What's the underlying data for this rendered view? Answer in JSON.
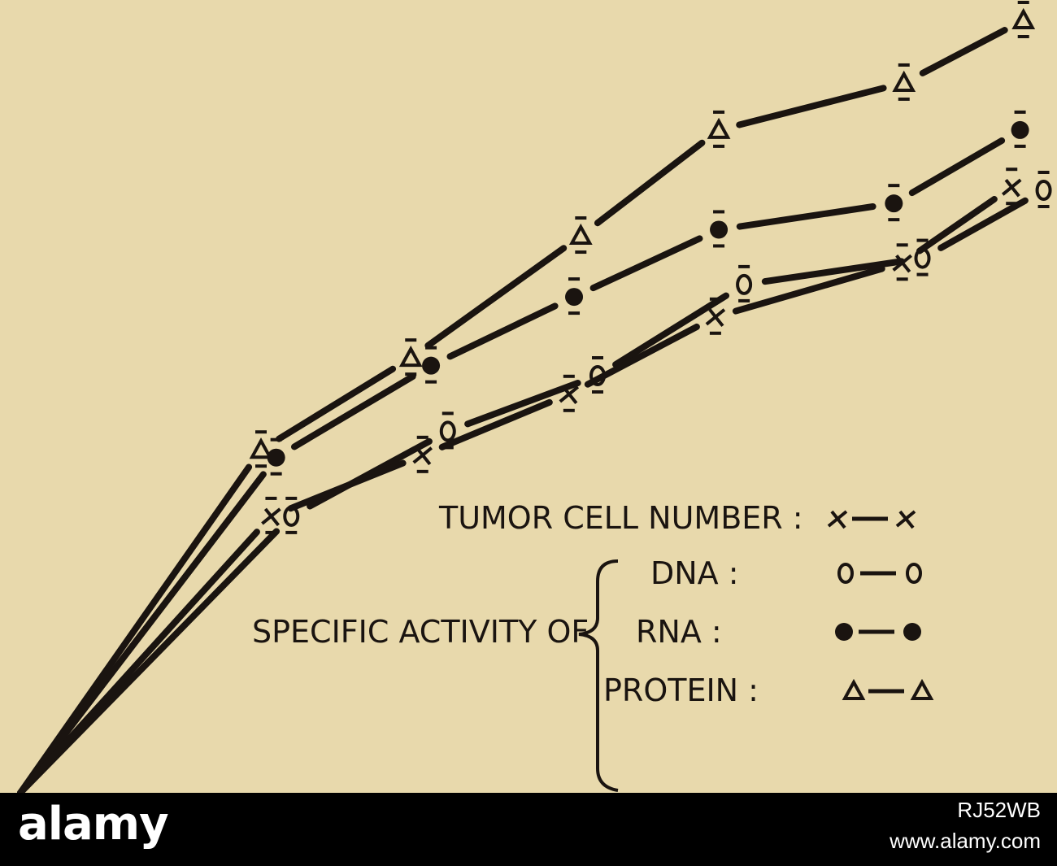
{
  "chart_data": {
    "type": "line",
    "title": "",
    "xlabel": "",
    "ylabel": "",
    "xlim": [
      0,
      6.3
    ],
    "ylim": [
      0,
      105
    ],
    "grid": false,
    "axes_visible": false,
    "legend_placement": "bottom-right",
    "legend": {
      "tumor_label": "TUMOR CELL NUMBER :",
      "group_label": "SPECIFIC ACTIVITY OF",
      "dna_label": "DNA :",
      "rna_label": "RNA :",
      "protein_label": "PROTEIN :"
    },
    "series": [
      {
        "name": "PROTEIN",
        "marker": "open-triangle",
        "x": [
          0,
          1.43,
          2.32,
          3.33,
          4.15,
          5.25,
          5.96
        ],
        "y": [
          0,
          44.4,
          56.3,
          72.1,
          85.8,
          91.9,
          100.0
        ]
      },
      {
        "name": "RNA",
        "marker": "filled-circle",
        "x": [
          0,
          1.52,
          2.44,
          3.29,
          4.15,
          5.19,
          5.94
        ],
        "y": [
          0,
          43.4,
          55.3,
          64.2,
          72.9,
          76.3,
          85.8
        ]
      },
      {
        "name": "DNA",
        "marker": "open-circle",
        "x": [
          0,
          1.61,
          2.54,
          3.43,
          4.3,
          5.36,
          6.08
        ],
        "y": [
          0,
          35.8,
          46.8,
          54.0,
          65.8,
          69.2,
          78.0
        ]
      },
      {
        "name": "TUMOR CELL NUMBER",
        "marker": "x",
        "x": [
          0,
          1.49,
          2.39,
          3.26,
          4.13,
          5.24,
          5.89
        ],
        "y": [
          0,
          35.8,
          43.7,
          51.6,
          61.6,
          68.6,
          78.4
        ]
      }
    ],
    "colors": {
      "background": "#e8d9ac",
      "ink": "#1a1410"
    }
  },
  "watermark": {
    "logo": "alamy",
    "image_id": "RJ52WB",
    "url": "www.alamy.com"
  }
}
